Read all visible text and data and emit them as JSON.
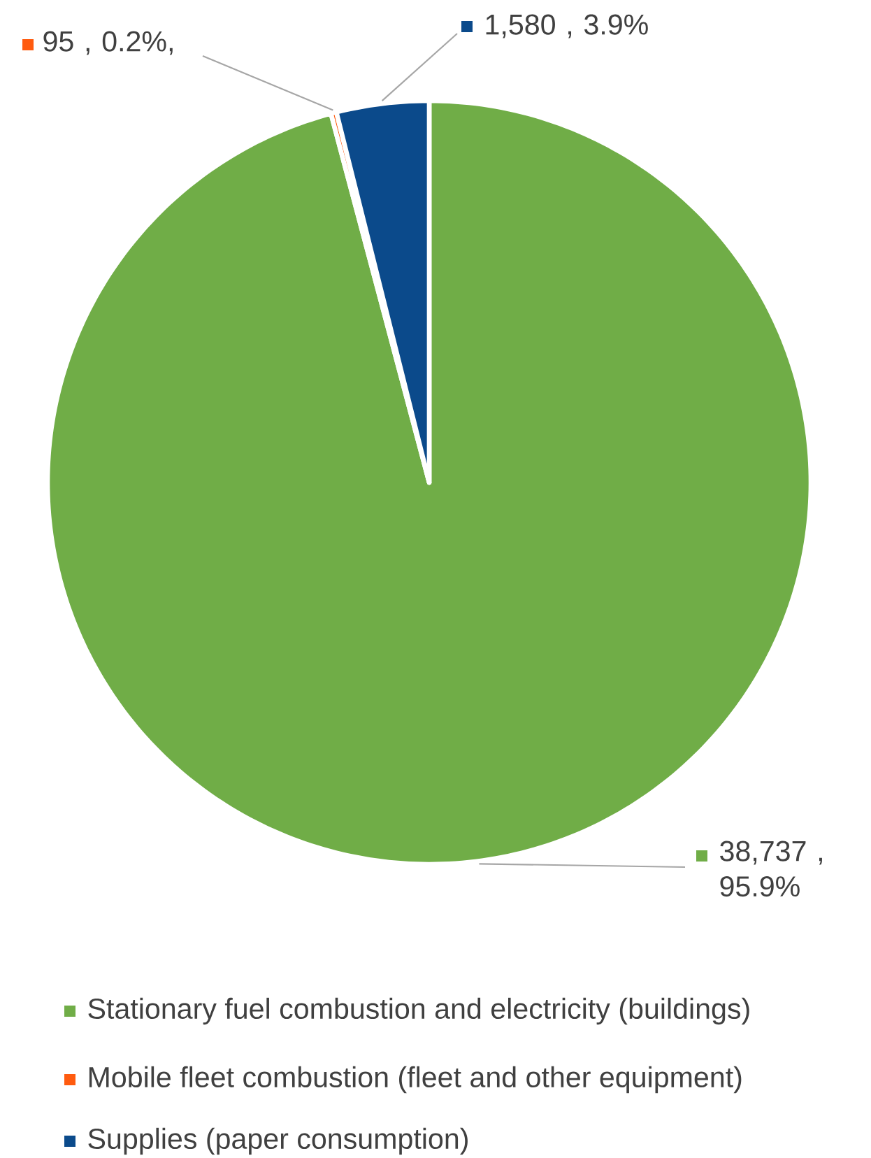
{
  "chart_data": {
    "type": "pie",
    "categories": [
      "Stationary fuel combustion and electricity (buildings)",
      "Mobile fleet combustion (fleet and other equipment)",
      "Supplies (paper consumption)"
    ],
    "values": [
      38737,
      95,
      1580
    ],
    "colors": [
      "#70ad47",
      "#ff5b0f",
      "#0b4a8b"
    ],
    "value_labels": [
      "38,737 , 95.9%",
      "95 , 0.2%,",
      "1,580 , 3.9%"
    ],
    "legend": "bottom"
  }
}
